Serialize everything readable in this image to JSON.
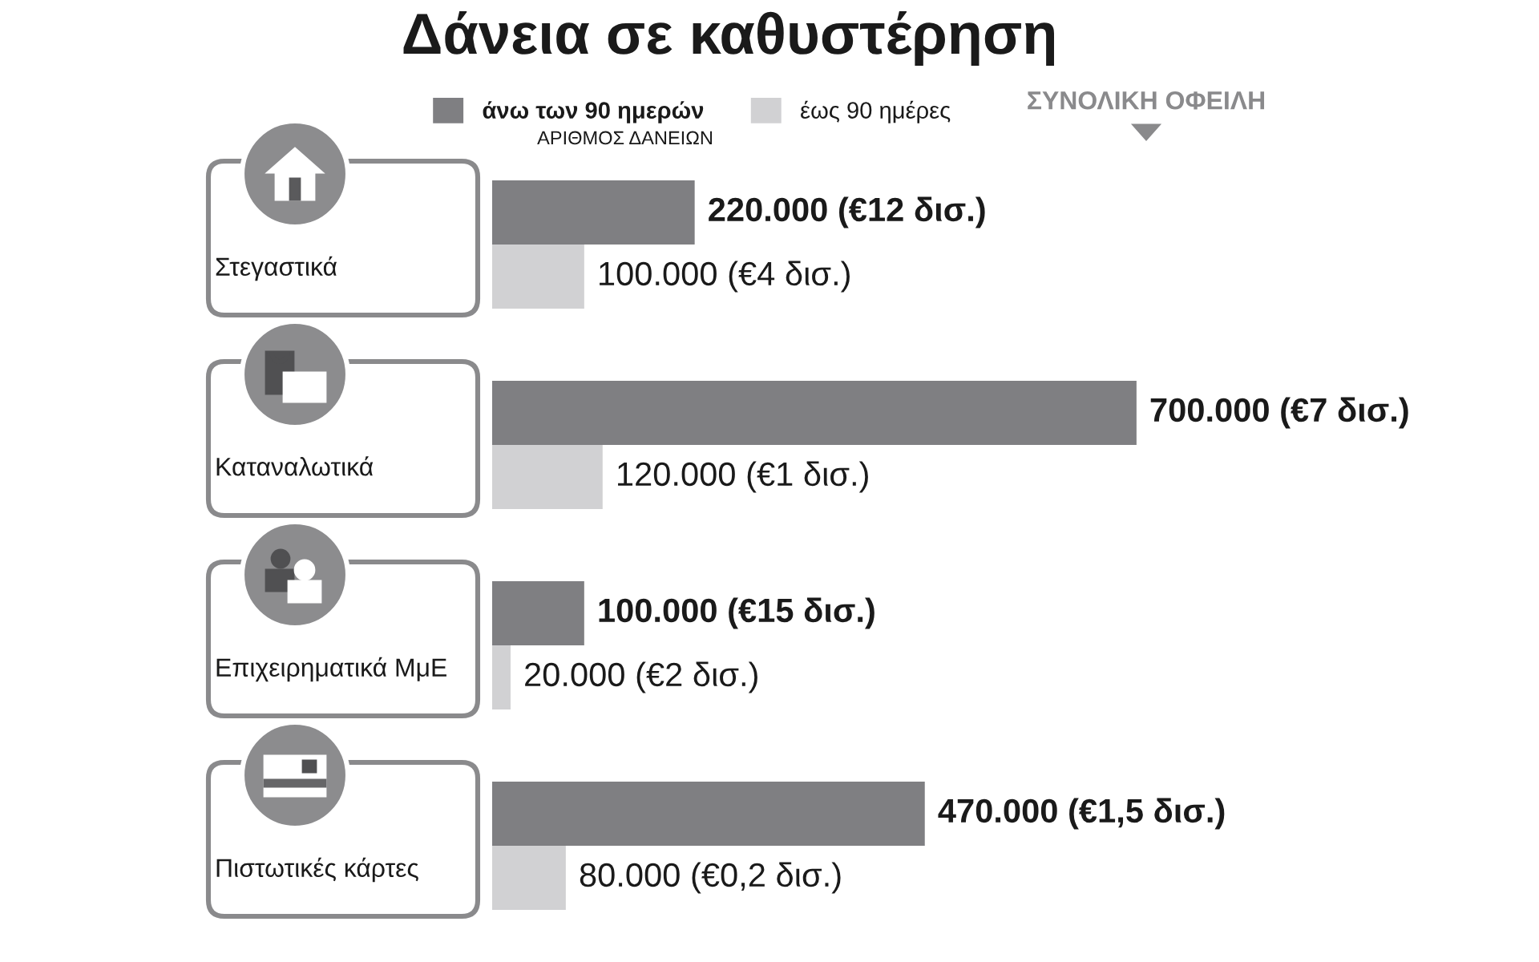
{
  "chart_data": {
    "type": "bar",
    "orientation": "horizontal",
    "title": "Δάνεια σε καθυστέρηση",
    "categories": [
      "Στεγαστικά",
      "Καταναλωτικά",
      "Επιχειρηματικά ΜμΕ",
      "Πιστωτικές κάρτες"
    ],
    "series": [
      {
        "name": "άνω των 90 ημερών",
        "color": "#7f7f82",
        "values": [
          220000,
          700000,
          100000,
          470000
        ],
        "value_labels": [
          "220.000 (€12 δισ.)",
          "700.000 (€7 δισ.)",
          "100.000 (€15 δισ.)",
          "470.000 (€1,5 δισ.)"
        ]
      },
      {
        "name": "έως 90 ημέρες",
        "color": "#d1d1d3",
        "values": [
          100000,
          120000,
          20000,
          80000
        ],
        "value_labels": [
          "100.000 (€4 δισ.)",
          "120.000 (€1 δισ.)",
          "20.000 (€2 δισ.)",
          "80.000 (€0,2 δισ.)"
        ]
      }
    ],
    "annotations": [
      "ΑΡΙΘΜΟΣ ΔΑΝΕΙΩΝ",
      "ΣΥΝΟΛΙΚΗ ΟΦΕΙΛΗ"
    ],
    "legend": "top",
    "tick_labels": "y"
  }
}
